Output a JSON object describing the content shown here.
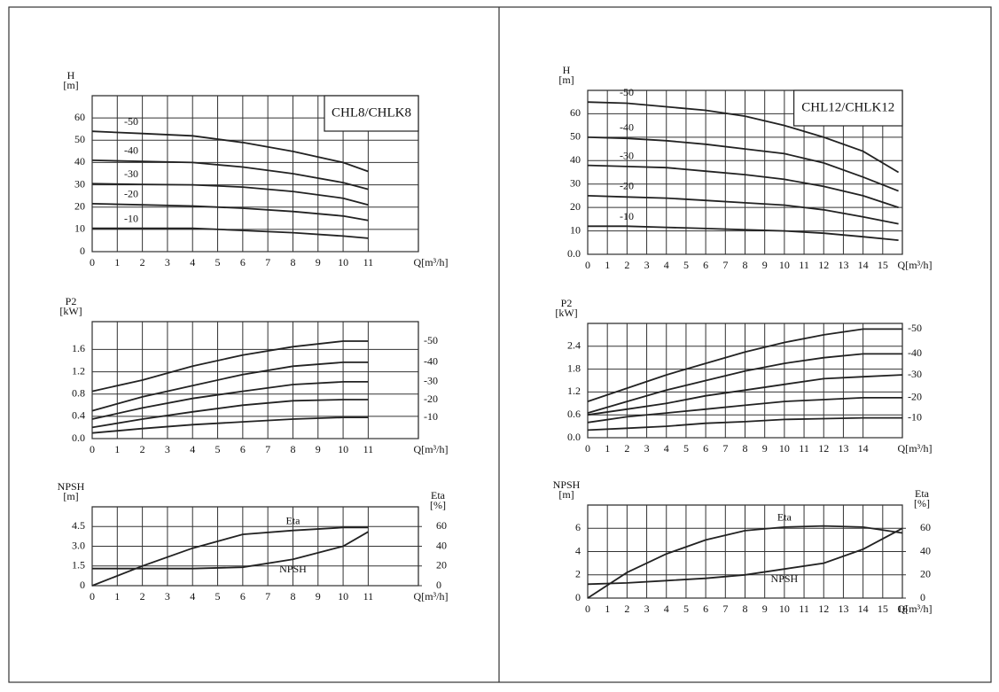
{
  "chart_data": [
    {
      "type": "line",
      "title": "CHL8/CHLK8",
      "ylabel": [
        "H",
        "[m]"
      ],
      "xlabel": "Q[m³/h]",
      "x": [
        0,
        2,
        4,
        6,
        8,
        10,
        11
      ],
      "xlim": [
        0,
        13
      ],
      "xticks": [
        0,
        1,
        2,
        3,
        4,
        5,
        6,
        7,
        8,
        9,
        10,
        11
      ],
      "ylim": [
        0,
        70
      ],
      "yticks": [
        0,
        10,
        20,
        30,
        40,
        50,
        60
      ],
      "grid": true,
      "series_label_position": "left",
      "series": [
        {
          "name": "-50",
          "color": "#222",
          "values": [
            54,
            53,
            52,
            49,
            45,
            40,
            36
          ]
        },
        {
          "name": "-40",
          "color": "#222",
          "values": [
            41,
            40.5,
            40,
            38,
            35,
            31,
            28
          ]
        },
        {
          "name": "-30",
          "color": "#222",
          "values": [
            30.5,
            30.2,
            30,
            29,
            27,
            24,
            21
          ]
        },
        {
          "name": "-20",
          "color": "#222",
          "values": [
            21.5,
            21,
            20.5,
            19.5,
            18,
            16,
            14
          ]
        },
        {
          "name": "-10",
          "color": "#222",
          "values": [
            10.5,
            10.5,
            10.5,
            9.5,
            8.5,
            7,
            6
          ]
        }
      ]
    },
    {
      "type": "line",
      "ylabel": [
        "P2",
        "[kW]"
      ],
      "xlabel": "Q[m³/h]",
      "x": [
        0,
        2,
        4,
        6,
        8,
        10,
        11
      ],
      "xlim": [
        0,
        13
      ],
      "xticks": [
        0,
        1,
        2,
        3,
        4,
        5,
        6,
        7,
        8,
        9,
        10,
        11
      ],
      "ylim": [
        0,
        2.1
      ],
      "yticks": [
        {
          "value": 0,
          "label": "0.0"
        },
        0.4,
        0.8,
        1.2,
        1.6
      ],
      "grid": true,
      "series_label_position": "right",
      "series": [
        {
          "name": "-50",
          "color": "#222",
          "values": [
            0.85,
            1.05,
            1.3,
            1.5,
            1.65,
            1.75,
            1.75
          ]
        },
        {
          "name": "-40",
          "color": "#222",
          "values": [
            0.5,
            0.75,
            0.95,
            1.15,
            1.3,
            1.37,
            1.37
          ]
        },
        {
          "name": "-30",
          "color": "#222",
          "values": [
            0.35,
            0.55,
            0.72,
            0.85,
            0.97,
            1.02,
            1.02
          ]
        },
        {
          "name": "-20",
          "color": "#222",
          "values": [
            0.2,
            0.35,
            0.48,
            0.6,
            0.68,
            0.7,
            0.7
          ]
        },
        {
          "name": "-10",
          "color": "#222",
          "values": [
            0.1,
            0.18,
            0.25,
            0.3,
            0.35,
            0.38,
            0.38
          ]
        }
      ]
    },
    {
      "type": "line",
      "ylabel": [
        "NPSH",
        "[m]"
      ],
      "y2label": [
        "Eta",
        "[%]"
      ],
      "xlabel": "Q[m³/h]",
      "x": [
        0,
        2,
        4,
        6,
        8,
        10,
        11
      ],
      "xlim": [
        0,
        13
      ],
      "xticks": [
        0,
        1,
        2,
        3,
        4,
        5,
        6,
        7,
        8,
        9,
        10,
        11
      ],
      "ylim": [
        0,
        6
      ],
      "yticks": [
        0,
        1.5,
        {
          "value": 3,
          "label": "3.0"
        },
        4.5
      ],
      "y2lim": [
        0,
        80
      ],
      "y2ticks": [
        0,
        20,
        40,
        60
      ],
      "grid": true,
      "series_label_position": "inline",
      "series": [
        {
          "name": "Eta",
          "color": "#222",
          "axis": "y2",
          "values": [
            0,
            20,
            38,
            52,
            56,
            59,
            59
          ]
        },
        {
          "name": "NPSH",
          "color": "#222",
          "values": [
            1.3,
            1.3,
            1.3,
            1.4,
            2,
            3,
            4.1
          ]
        }
      ]
    },
    {
      "type": "line",
      "title": "CHL12/CHLK12",
      "ylabel": [
        "H",
        "[m]"
      ],
      "xlabel": "Q[m³/h]",
      "x": [
        0,
        2,
        4,
        6,
        8,
        10,
        12,
        14,
        15.8
      ],
      "xlim": [
        0,
        16
      ],
      "xticks": [
        0,
        1,
        2,
        3,
        4,
        5,
        6,
        7,
        8,
        9,
        10,
        11,
        12,
        13,
        14,
        15
      ],
      "ylim": [
        0,
        70
      ],
      "yticks": [
        {
          "value": 0,
          "label": "0.0"
        },
        10,
        20,
        30,
        40,
        50,
        60
      ],
      "grid": true,
      "series_label_position": "left",
      "series": [
        {
          "name": "-50",
          "color": "#222",
          "values": [
            65,
            64.5,
            63,
            61.5,
            59,
            55,
            50,
            44,
            35
          ]
        },
        {
          "name": "-40",
          "color": "#222",
          "values": [
            50,
            49.5,
            48.5,
            47,
            45,
            43,
            39,
            33,
            27
          ]
        },
        {
          "name": "-30",
          "color": "#222",
          "values": [
            38,
            37.5,
            37,
            35.5,
            34,
            32,
            29,
            25,
            20
          ]
        },
        {
          "name": "-20",
          "color": "#222",
          "values": [
            25,
            24.5,
            24,
            23,
            22,
            21,
            19,
            16,
            13
          ]
        },
        {
          "name": "-10",
          "color": "#222",
          "values": [
            12,
            12,
            11.5,
            11,
            10.5,
            10,
            9,
            7.5,
            6
          ]
        }
      ]
    },
    {
      "type": "line",
      "ylabel": [
        "P2",
        "[kW]"
      ],
      "xlabel": "Q[m³/h]",
      "x": [
        0,
        2,
        4,
        6,
        8,
        10,
        12,
        14,
        16
      ],
      "xlim": [
        0,
        16
      ],
      "xticks": [
        0,
        1,
        2,
        3,
        4,
        5,
        6,
        7,
        8,
        9,
        10,
        11,
        12,
        13,
        14
      ],
      "ylim": [
        0,
        3
      ],
      "yticks": [
        {
          "value": 0,
          "label": "0.0"
        },
        0.6,
        1.2,
        1.8,
        2.4
      ],
      "grid": true,
      "series_label_position": "right",
      "series": [
        {
          "name": "-50",
          "color": "#222",
          "values": [
            0.95,
            1.3,
            1.65,
            1.95,
            2.25,
            2.5,
            2.7,
            2.85,
            2.85
          ]
        },
        {
          "name": "-40",
          "color": "#222",
          "values": [
            0.65,
            0.95,
            1.25,
            1.5,
            1.75,
            1.95,
            2.1,
            2.2,
            2.2
          ]
        },
        {
          "name": "-30",
          "color": "#222",
          "values": [
            0.6,
            0.75,
            0.9,
            1.1,
            1.25,
            1.4,
            1.55,
            1.6,
            1.65
          ]
        },
        {
          "name": "-20",
          "color": "#222",
          "values": [
            0.4,
            0.55,
            0.65,
            0.75,
            0.85,
            0.95,
            1,
            1.05,
            1.05
          ]
        },
        {
          "name": "-10",
          "color": "#222",
          "values": [
            0.2,
            0.25,
            0.3,
            0.38,
            0.42,
            0.48,
            0.5,
            0.52,
            0.52
          ]
        }
      ]
    },
    {
      "type": "line",
      "ylabel": [
        "NPSH",
        "[m]"
      ],
      "y2label": [
        "Eta",
        "[%]"
      ],
      "xlabel": "Q[m³/h]",
      "x": [
        0,
        2,
        4,
        6,
        8,
        10,
        12,
        14,
        16
      ],
      "xlim": [
        0,
        16
      ],
      "xticks": [
        0,
        1,
        2,
        3,
        4,
        5,
        6,
        7,
        8,
        9,
        10,
        11,
        12,
        13,
        14,
        15,
        16
      ],
      "ylim": [
        0,
        8
      ],
      "yticks": [
        0,
        2,
        4,
        6
      ],
      "y2lim": [
        0,
        80
      ],
      "y2ticks": [
        0,
        20,
        40,
        60
      ],
      "grid": true,
      "series_label_position": "inline",
      "series": [
        {
          "name": "Eta",
          "color": "#222",
          "axis": "y2",
          "values": [
            0,
            22,
            38,
            50,
            58,
            61,
            62,
            61,
            56
          ]
        },
        {
          "name": "NPSH",
          "color": "#222",
          "values": [
            1.2,
            1.3,
            1.5,
            1.7,
            2,
            2.5,
            3,
            4.2,
            6
          ]
        }
      ]
    }
  ]
}
